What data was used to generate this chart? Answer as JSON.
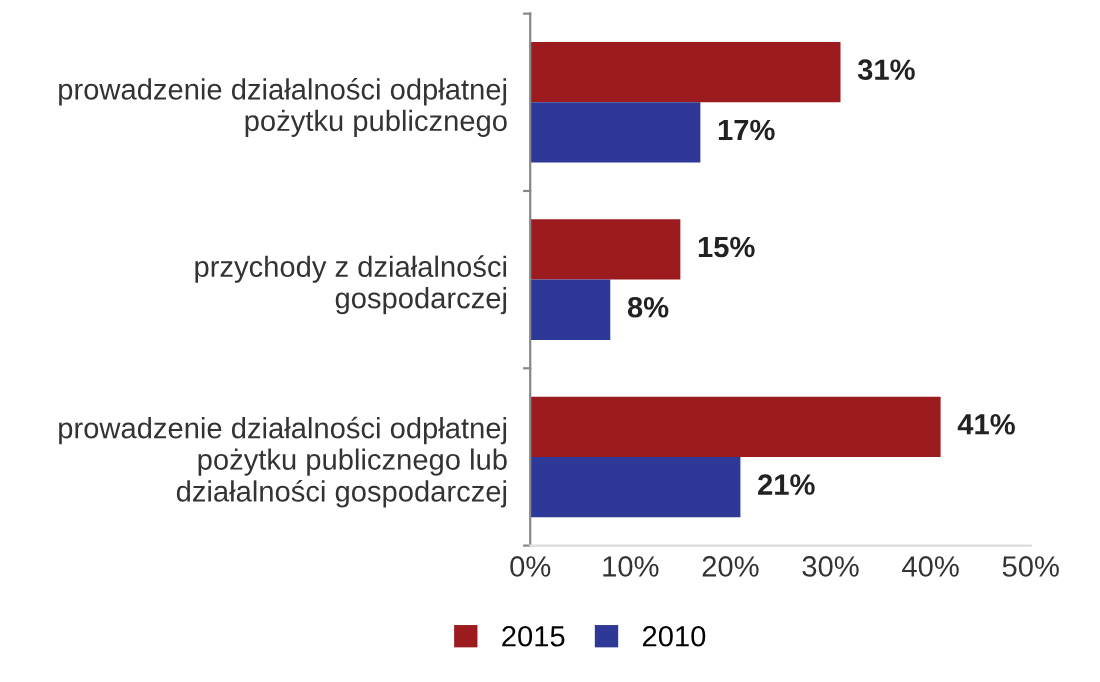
{
  "chart_data": {
    "type": "bar",
    "orientation": "horizontal",
    "categories": [
      "prowadzenie działalności odpłatnej\npożytku publicznego",
      "przychody z działalności\ngospodarczej",
      "prowadzenie działalności odpłatnej\npożytku publicznego lub\ndziałalności gospodarczej"
    ],
    "series": [
      {
        "name": "2015",
        "color": "#9b1b1e",
        "values": [
          31,
          15,
          41
        ],
        "value_labels": [
          "31%",
          "15%",
          "41%"
        ]
      },
      {
        "name": "2010",
        "color": "#2e3896",
        "values": [
          17,
          8,
          21
        ],
        "value_labels": [
          "17%",
          "8%",
          "21%"
        ]
      }
    ],
    "xlim": [
      0,
      50
    ],
    "xticks": [
      {
        "value": 0,
        "label": "0%"
      },
      {
        "value": 10,
        "label": "10%"
      },
      {
        "value": 20,
        "label": "20%"
      },
      {
        "value": 30,
        "label": "30%"
      },
      {
        "value": 40,
        "label": "40%"
      },
      {
        "value": 50,
        "label": "50%"
      }
    ],
    "grid": false,
    "legend": "bottom"
  }
}
